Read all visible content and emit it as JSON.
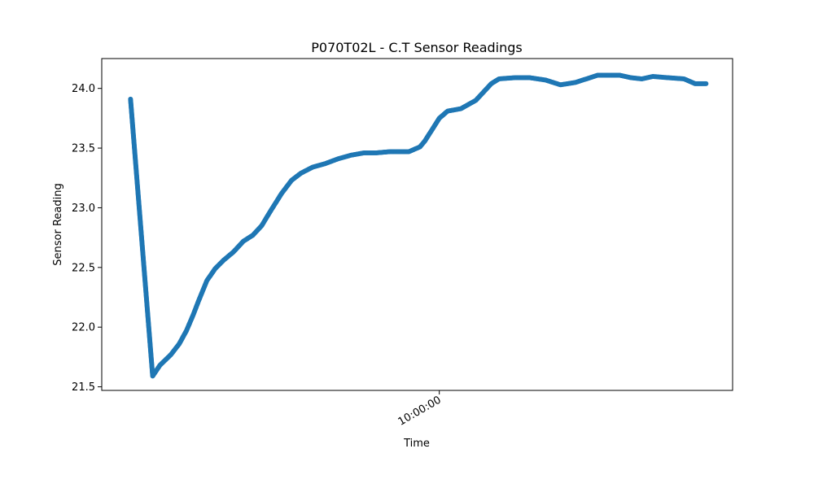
{
  "chart_data": {
    "type": "scatter",
    "title": "P070T02L - C.T Sensor Readings",
    "xlabel": "Time",
    "ylabel": "Sensor Reading",
    "x_tick_labels": [
      "10:00:00"
    ],
    "x_ticks": [
      61.0
    ],
    "xlim": [
      0,
      114
    ],
    "ylim": [
      21.47,
      24.25
    ],
    "y_ticks": [
      21.5,
      22.0,
      22.5,
      23.0,
      23.5,
      24.0
    ],
    "y_tick_labels": [
      "21.5",
      "22.0",
      "22.5",
      "23.0",
      "23.5",
      "24.0"
    ],
    "grid": false,
    "series": [
      {
        "color": "#1f77b4",
        "x": [
          5.2,
          9.2,
          10.5,
          12.5,
          14,
          15.3,
          16.5,
          17.5,
          19,
          20.5,
          22,
          23.8,
          25.6,
          27.3,
          28.9,
          30.6,
          32.5,
          34.3,
          36,
          38.1,
          40.4,
          42.7,
          45,
          47.4,
          49.6,
          52.1,
          55.5,
          57.5,
          58.4,
          61,
          62.5,
          64.9,
          67.6,
          70.4,
          71.8,
          74.7,
          77.3,
          80.2,
          82.9,
          85.6,
          87.6,
          89.6,
          91.6,
          93.6,
          95.6,
          97.6,
          99.6,
          102.2,
          105.2,
          107.2,
          109.2
        ],
        "y": [
          23.91,
          21.59,
          21.68,
          21.77,
          21.86,
          21.97,
          22.1,
          22.22,
          22.39,
          22.49,
          22.56,
          22.63,
          22.72,
          22.77,
          22.85,
          22.98,
          23.12,
          23.23,
          23.29,
          23.34,
          23.37,
          23.41,
          23.44,
          23.46,
          23.46,
          23.47,
          23.47,
          23.51,
          23.56,
          23.75,
          23.81,
          23.83,
          23.9,
          24.04,
          24.08,
          24.09,
          24.09,
          24.07,
          24.03,
          24.05,
          24.08,
          24.11,
          24.11,
          24.11,
          24.09,
          24.08,
          24.1,
          24.09,
          24.08,
          24.04,
          24.04
        ]
      }
    ]
  }
}
